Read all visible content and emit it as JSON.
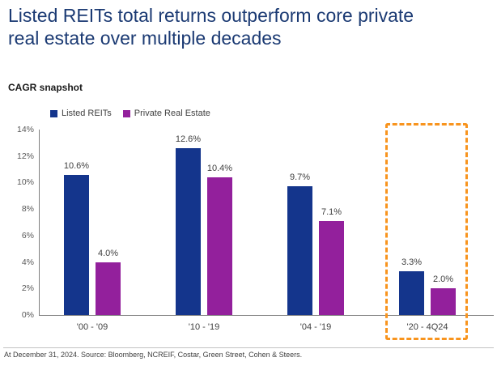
{
  "page": {
    "title_line1": "Listed REITs total returns outperform core private",
    "title_line2": "real estate over multiple decades",
    "subtitle": "CAGR snapshot",
    "footnote": "At December 31, 2024. Source: Bloomberg, NCREIF, Costar, Green Street, Cohen & Steers."
  },
  "colors": {
    "title": "#1B3A73",
    "listed_reits": "#14358C",
    "private_real_estate": "#93209C",
    "highlight_box": "#F8941E",
    "axis": "#7f7f7f",
    "value_label": "#404040",
    "tick_label": "#595959"
  },
  "legend": {
    "items": [
      {
        "label": "Listed REITs",
        "color": "#14358C"
      },
      {
        "label": "Private Real Estate",
        "color": "#93209C"
      }
    ]
  },
  "chart_data": {
    "type": "bar",
    "title": "CAGR snapshot",
    "categories": [
      "'00 - '09",
      "'10 - '19",
      "'04 - '19",
      "'20 - 4Q24"
    ],
    "series": [
      {
        "name": "Listed REITs",
        "color": "#14358C",
        "values": [
          10.6,
          12.6,
          9.7,
          3.3
        ]
      },
      {
        "name": "Private Real Estate",
        "color": "#93209C",
        "values": [
          4.0,
          10.4,
          7.1,
          2.0
        ]
      }
    ],
    "value_label_format": "{v}%",
    "xlabel": "",
    "ylabel": "",
    "ylim": [
      0,
      14
    ],
    "ytick_step": 2,
    "ytick_suffix": "%",
    "yticks": [
      "0%",
      "2%",
      "4%",
      "6%",
      "8%",
      "10%",
      "12%",
      "14%"
    ],
    "grid": false,
    "legend_position": "top-left",
    "highlighted_category": "'20 - 4Q24",
    "highlight_style": "orange-dashed-box"
  }
}
